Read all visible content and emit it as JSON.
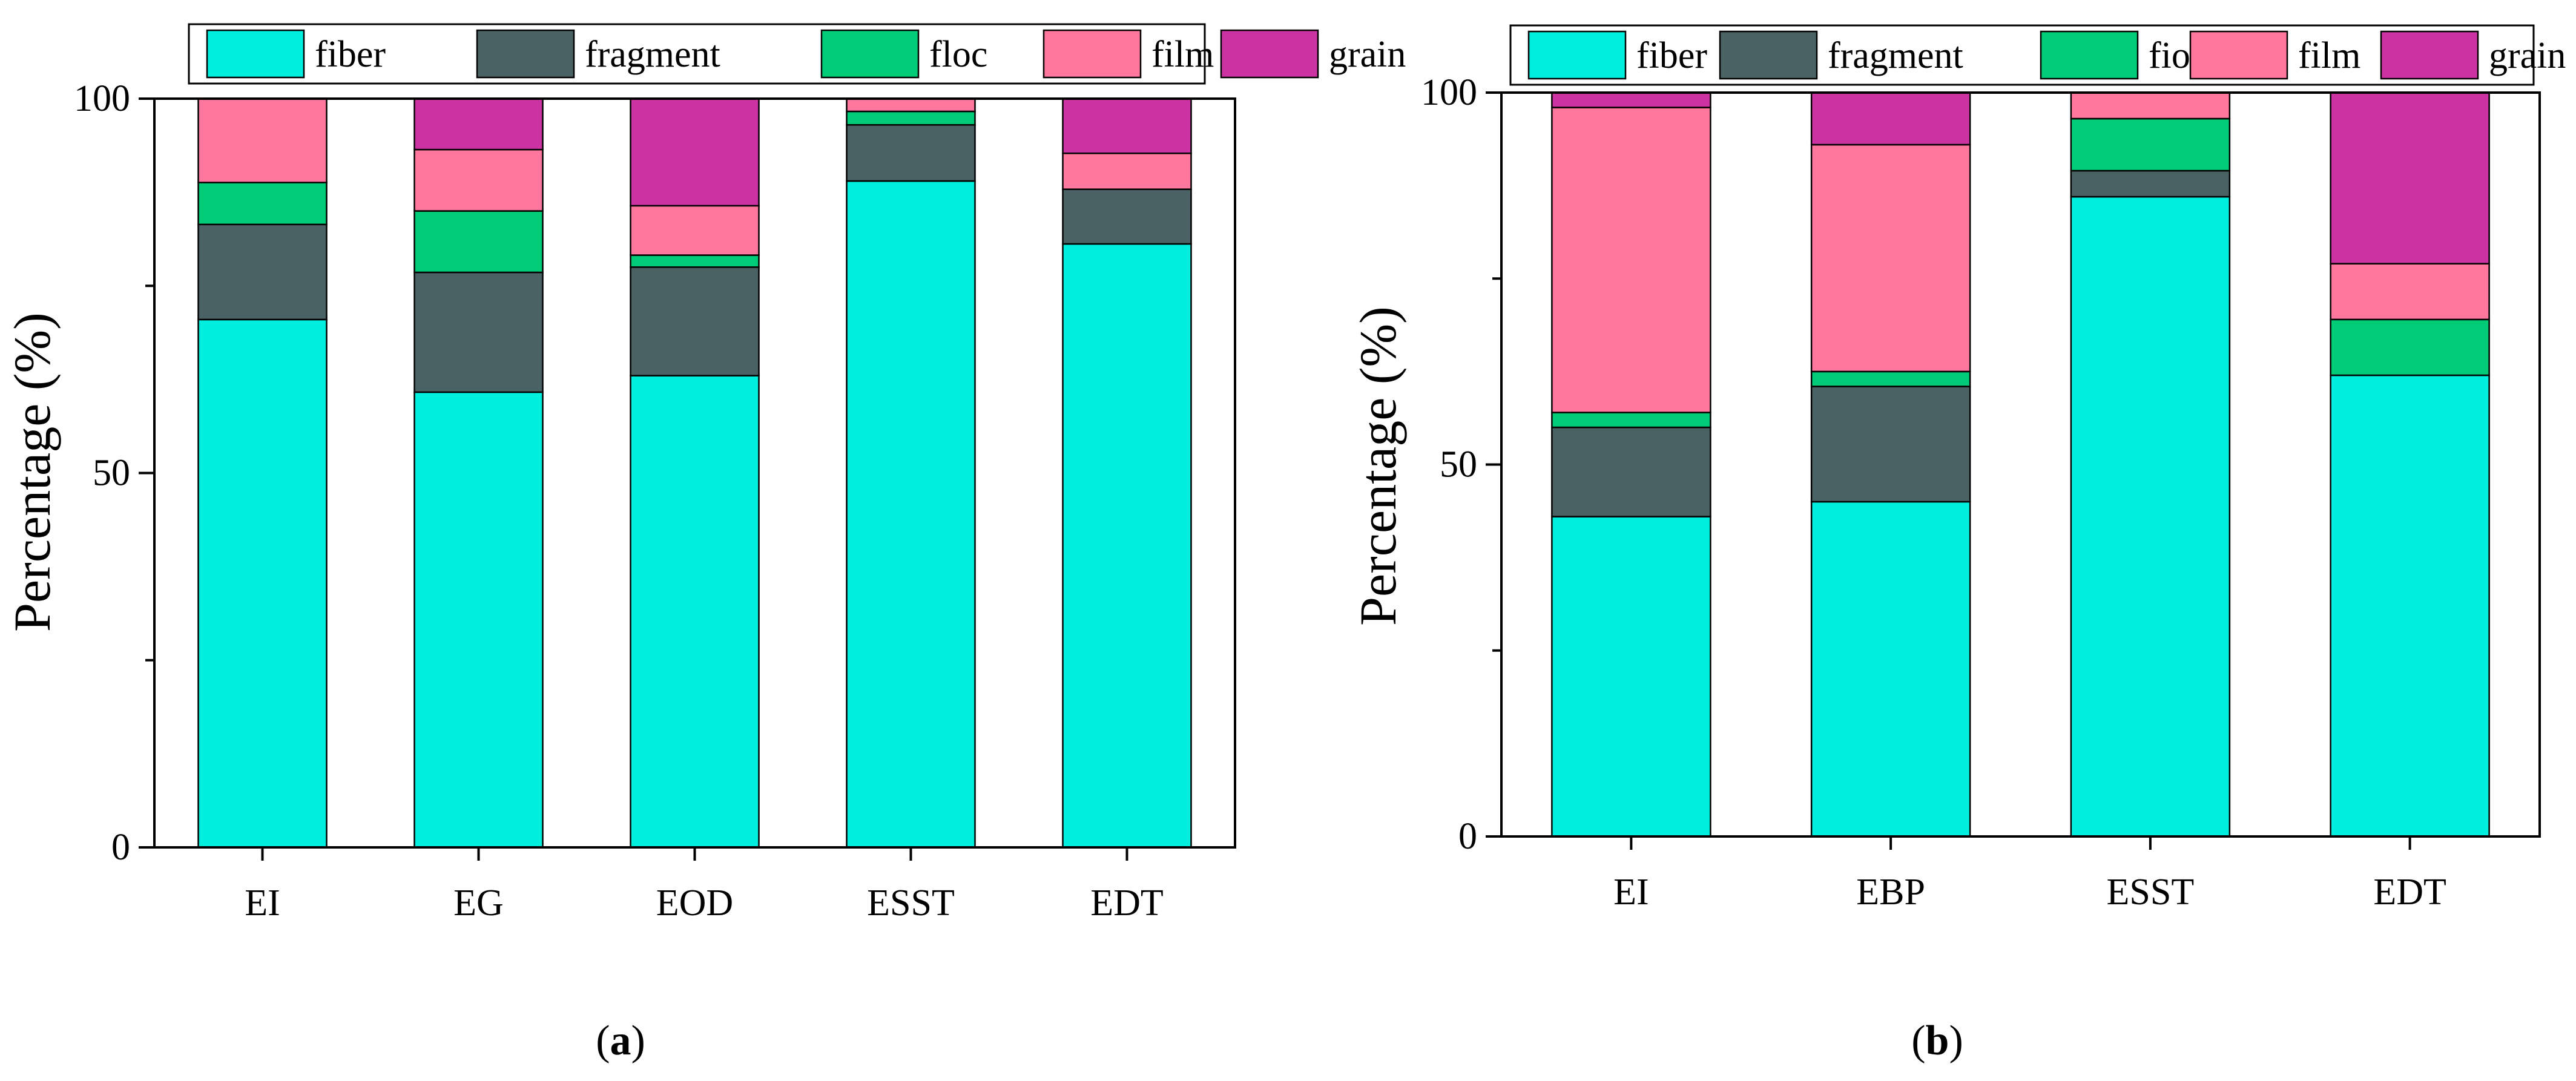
{
  "chart_data": [
    {
      "type": "bar",
      "stacked": true,
      "panel_label": "a",
      "title": "",
      "xlabel": "",
      "ylabel": "Percentage (%)",
      "ylim": [
        0,
        100
      ],
      "yticks": [
        "0",
        "50",
        "100"
      ],
      "grid": false,
      "legend_position": "top",
      "categories": [
        "EI",
        "EG",
        "EOD",
        "ESST",
        "EDT"
      ],
      "series": [
        {
          "name": "fiber",
          "color": "#00eedd",
          "values": [
            70.5,
            60.8,
            63.0,
            89.0,
            80.6
          ]
        },
        {
          "name": "fragment",
          "color": "#4a6264",
          "values": [
            12.7,
            16.0,
            14.5,
            7.5,
            7.3
          ]
        },
        {
          "name": "floc",
          "color": "#00cc77",
          "values": [
            5.6,
            8.2,
            1.6,
            1.8,
            0.0
          ]
        },
        {
          "name": "film",
          "color": "#ff779d",
          "values": [
            11.2,
            8.2,
            6.6,
            1.7,
            4.8
          ]
        },
        {
          "name": "grain",
          "color": "#cc33a2",
          "values": [
            0.0,
            6.8,
            14.3,
            0.0,
            7.3
          ]
        }
      ]
    },
    {
      "type": "bar",
      "stacked": true,
      "panel_label": "b",
      "title": "",
      "xlabel": "",
      "ylabel": "Percentage (%)",
      "ylim": [
        0,
        100
      ],
      "yticks": [
        "0",
        "50",
        "100"
      ],
      "grid": false,
      "legend_position": "top",
      "categories": [
        "EI",
        "EBP",
        "ESST",
        "EDT"
      ],
      "series": [
        {
          "name": "fiber",
          "color": "#00eedd",
          "values": [
            43.0,
            45.0,
            86.0,
            62.0
          ]
        },
        {
          "name": "fragment",
          "color": "#4a6264",
          "values": [
            12.0,
            15.5,
            3.5,
            0.0
          ]
        },
        {
          "name": "fioc",
          "color": "#00cc77",
          "values": [
            2.0,
            2.0,
            7.0,
            7.5
          ]
        },
        {
          "name": "film",
          "color": "#ff779d",
          "values": [
            41.0,
            30.5,
            3.5,
            7.5
          ]
        },
        {
          "name": "grain",
          "color": "#cc33a2",
          "values": [
            2.0,
            7.0,
            0.0,
            23.0
          ]
        }
      ]
    }
  ]
}
